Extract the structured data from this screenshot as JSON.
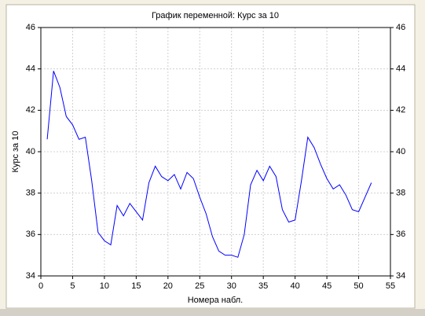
{
  "chart_data": {
    "type": "line",
    "title": "График переменной: Курс за 10",
    "xlabel": "Номера набл.",
    "ylabel": "Курс за 10",
    "x": [
      1,
      2,
      3,
      4,
      5,
      6,
      7,
      8,
      9,
      10,
      11,
      12,
      13,
      14,
      15,
      16,
      17,
      18,
      19,
      20,
      21,
      22,
      23,
      24,
      25,
      26,
      27,
      28,
      29,
      30,
      31,
      32,
      33,
      34,
      35,
      36,
      37,
      38,
      39,
      40,
      41,
      42,
      43,
      44,
      45,
      46,
      47,
      48,
      49,
      50,
      51,
      52
    ],
    "series": [
      {
        "name": "Курс за 10",
        "color": "#0000ff",
        "values": [
          40.6,
          43.9,
          43.1,
          41.7,
          41.3,
          40.6,
          40.7,
          38.6,
          36.1,
          35.7,
          35.5,
          37.4,
          36.9,
          37.5,
          37.1,
          36.7,
          38.5,
          39.3,
          38.8,
          38.6,
          38.9,
          38.2,
          39.0,
          38.7,
          37.8,
          37.0,
          35.9,
          35.2,
          35.0,
          35.0,
          34.9,
          36.0,
          38.4,
          39.1,
          38.6,
          39.3,
          38.8,
          37.2,
          36.6,
          36.7,
          38.6,
          40.7,
          40.2,
          39.4,
          38.7,
          38.2,
          38.4,
          37.9,
          37.2,
          37.1,
          37.8,
          38.5
        ]
      }
    ],
    "xlim": [
      0,
      55
    ],
    "xticks": [
      0,
      5,
      10,
      15,
      20,
      25,
      30,
      35,
      40,
      45,
      50,
      55
    ],
    "ylim": [
      34,
      46
    ],
    "yticks": [
      34,
      36,
      38,
      40,
      42,
      44,
      46
    ],
    "y2lim": [
      34,
      46
    ],
    "y2ticks": [
      34,
      36,
      38,
      40,
      42,
      44,
      46
    ],
    "grid": true
  }
}
